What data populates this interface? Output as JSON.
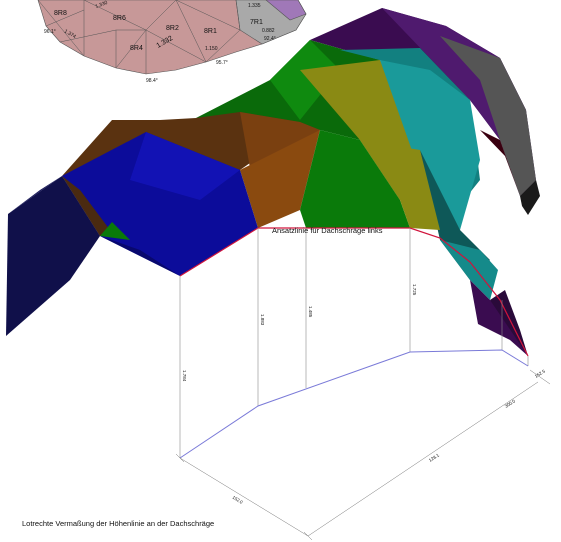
{
  "diagram": {
    "slope_line_label": "Ansatzlinie für Dachschräge links",
    "caption": "Lotrechte Vermaßung der Höhenlinie an der Dachschräge",
    "panel_labels": [
      {
        "id": "8R8",
        "text": "8R8"
      },
      {
        "id": "8R6",
        "text": "8R6"
      },
      {
        "id": "8R2",
        "text": "8R2"
      },
      {
        "id": "8R1",
        "text": "8R1"
      },
      {
        "id": "7R1",
        "text": "7R1"
      },
      {
        "id": "8R4",
        "text": "8R4"
      }
    ],
    "angles": [
      "96.1°",
      "98.4°",
      "95.7°",
      "92.4°"
    ],
    "dimensions_top": [
      "1.374",
      "1.330",
      "1.332",
      "1.150",
      "1.335",
      "0.882"
    ],
    "heights": [
      "1.784",
      "1.883",
      "1.485",
      "1.725"
    ],
    "floor_dimensions": [
      "152.0",
      "128.1",
      "300.0",
      "152.5"
    ],
    "colors": {
      "dark_navy": "#10104a",
      "blue": "#0c0c9a",
      "brown": "#6e3c0d",
      "orange_brown": "#8a4a0f",
      "green": "#0a7a0a",
      "olive": "#8a8a14",
      "teal": "#1a9898",
      "dark_teal": "#0e5555",
      "purple": "#4a1060",
      "dark_purple": "#2a0a3a",
      "gray": "#4a4a4a",
      "pink_dome": "#c89a9a",
      "red_line": "#d0143c",
      "floor_line": "#7a7ad8"
    }
  }
}
